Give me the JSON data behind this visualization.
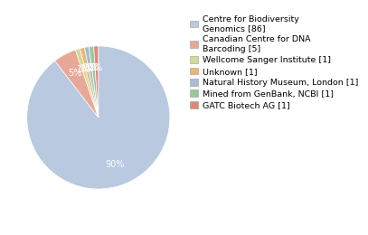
{
  "labels": [
    "Centre for Biodiversity\nGenomics [86]",
    "Canadian Centre for DNA\nBarcoding [5]",
    "Wellcome Sanger Institute [1]",
    "Unknown [1]",
    "Natural History Museum, London [1]",
    "Mined from GenBank, NCBI [1]",
    "GATC Biotech AG [1]"
  ],
  "values": [
    86,
    5,
    1,
    1,
    1,
    1,
    1
  ],
  "colors": [
    "#b8c9e0",
    "#e8a898",
    "#d4d898",
    "#e8b870",
    "#a8bcd4",
    "#98c898",
    "#e08878"
  ],
  "background_color": "#ffffff",
  "text_color": "#ffffff",
  "pct_fontsize": 7,
  "legend_fontsize": 6.8
}
